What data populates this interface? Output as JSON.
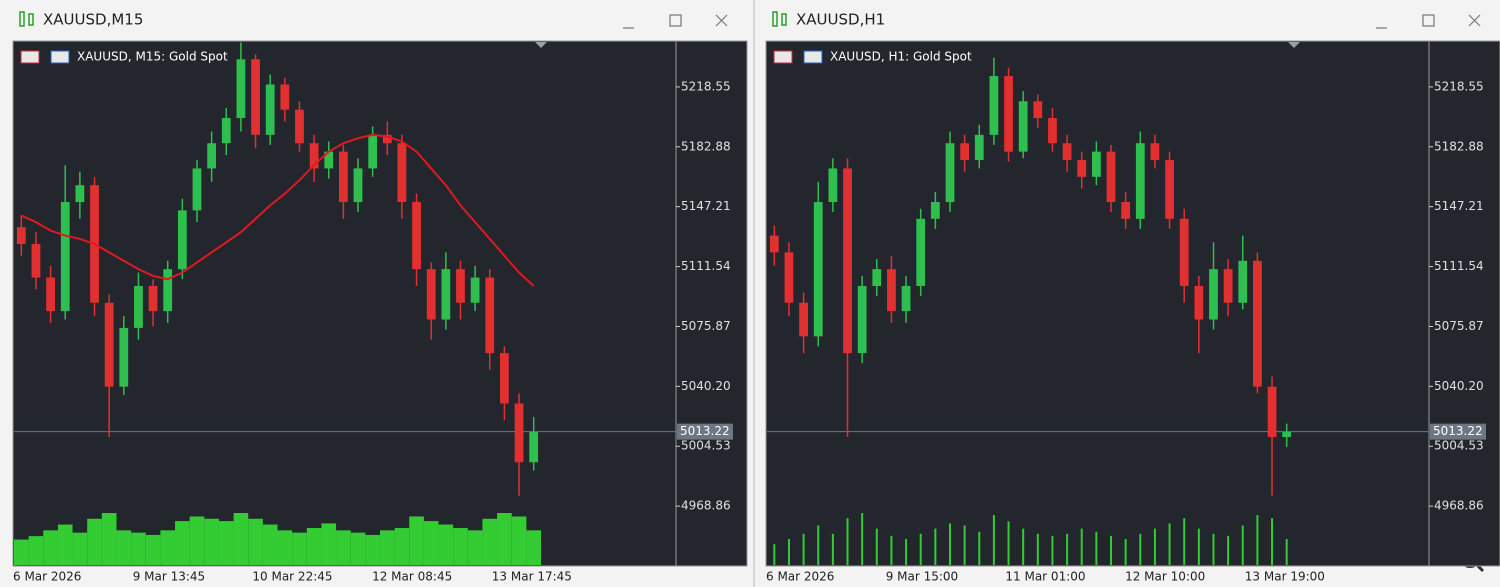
{
  "windows": [
    {
      "title": "XAUUSD,M15",
      "label": "XAUUSD, M15:  Gold Spot",
      "ylim": [
        4933.8,
        5245.3
      ],
      "yticks": [
        5218.55,
        5182.88,
        5147.21,
        5111.54,
        5075.87,
        {
          "value": 5040.2,
          "label": "5040.20"
        },
        5004.53,
        4968.86
      ],
      "current_price": 5013.22,
      "xlabels": [
        "6 Mar 2026",
        "9 Mar 13:45",
        "10 Mar 22:45",
        "12 Mar 08:45",
        "13 Mar 17:45"
      ],
      "candles": {
        "open": [
          5135,
          5125,
          5105,
          5085,
          5150,
          5160,
          5090,
          5040,
          5075,
          5100,
          5085,
          5110,
          5145,
          5170,
          5185,
          5200,
          5235,
          5190,
          5220,
          5205,
          5185,
          5170,
          5180,
          5150,
          5170,
          5190,
          5185,
          5150,
          5110,
          5080,
          5110,
          5090,
          5105,
          5060,
          5030,
          4995
        ],
        "high": [
          5142,
          5132,
          5112,
          5172,
          5168,
          5165,
          5095,
          5082,
          5108,
          5104,
          5115,
          5152,
          5175,
          5192,
          5206,
          5245,
          5238,
          5226,
          5224,
          5210,
          5190,
          5186,
          5184,
          5176,
          5195,
          5198,
          5190,
          5155,
          5114,
          5120,
          5115,
          5112,
          5110,
          5064,
          5036,
          5022
        ],
        "low": [
          5118,
          5098,
          5078,
          5080,
          5140,
          5082,
          5010,
          5035,
          5068,
          5076,
          5078,
          5104,
          5138,
          5162,
          5178,
          5192,
          5182,
          5184,
          5198,
          5180,
          5162,
          5164,
          5140,
          5144,
          5165,
          5178,
          5140,
          5100,
          5068,
          5074,
          5080,
          5085,
          5050,
          5020,
          4975,
          4990
        ],
        "close": [
          5125,
          5105,
          5085,
          5150,
          5160,
          5090,
          5040,
          5075,
          5100,
          5085,
          5110,
          5145,
          5170,
          5185,
          5200,
          5235,
          5190,
          5220,
          5205,
          5185,
          5170,
          5180,
          5150,
          5170,
          5190,
          5185,
          5150,
          5110,
          5080,
          5110,
          5090,
          5105,
          5060,
          5030,
          4995,
          5013
        ]
      },
      "ma": [
        5142,
        5138,
        5133,
        5130,
        5128,
        5125,
        5120,
        5115,
        5110,
        5106,
        5104,
        5108,
        5114,
        5120,
        5126,
        5132,
        5140,
        5148,
        5155,
        5163,
        5172,
        5180,
        5185,
        5188,
        5190,
        5189,
        5186,
        5180,
        5170,
        5160,
        5148,
        5138,
        5128,
        5118,
        5108,
        5100
      ],
      "ma_color": "#e0191f",
      "volume": [
        22,
        25,
        30,
        35,
        28,
        40,
        45,
        30,
        28,
        26,
        30,
        38,
        42,
        40,
        38,
        45,
        40,
        35,
        30,
        28,
        32,
        36,
        30,
        28,
        26,
        30,
        32,
        42,
        38,
        35,
        32,
        30,
        40,
        45,
        42,
        30
      ],
      "volume_style": "filled"
    },
    {
      "title": "XAUUSD,H1",
      "label": "XAUUSD, H1:  Gold Spot",
      "ylim": [
        4933.8,
        5245.3
      ],
      "yticks": [
        5218.55,
        5182.88,
        5147.21,
        5111.54,
        5075.87,
        {
          "value": 5040.2,
          "label": "5040.20"
        },
        5004.53,
        4968.86
      ],
      "current_price": 5013.22,
      "xlabels": [
        "6 Mar 2026",
        "9 Mar 15:00",
        "11 Mar 01:00",
        "12 Mar 10:00",
        "13 Mar 19:00"
      ],
      "candles": {
        "open": [
          5130,
          5120,
          5090,
          5070,
          5150,
          5170,
          5060,
          5100,
          5110,
          5085,
          5100,
          5140,
          5150,
          5185,
          5175,
          5190,
          5225,
          5180,
          5210,
          5200,
          5185,
          5175,
          5165,
          5180,
          5150,
          5140,
          5185,
          5175,
          5140,
          5100,
          5080,
          5110,
          5090,
          5115,
          5040,
          5010
        ],
        "high": [
          5136,
          5126,
          5096,
          5162,
          5176,
          5176,
          5106,
          5116,
          5118,
          5106,
          5146,
          5156,
          5192,
          5190,
          5196,
          5236,
          5230,
          5216,
          5214,
          5206,
          5190,
          5180,
          5186,
          5184,
          5156,
          5192,
          5190,
          5180,
          5146,
          5106,
          5126,
          5116,
          5130,
          5120,
          5046,
          5018
        ],
        "low": [
          5112,
          5082,
          5060,
          5064,
          5144,
          5010,
          5054,
          5094,
          5078,
          5078,
          5094,
          5134,
          5144,
          5168,
          5170,
          5184,
          5174,
          5176,
          5194,
          5180,
          5168,
          5158,
          5160,
          5144,
          5134,
          5134,
          5170,
          5134,
          5090,
          5060,
          5074,
          5082,
          5086,
          5036,
          4975,
          5004
        ],
        "close": [
          5120,
          5090,
          5070,
          5150,
          5170,
          5060,
          5100,
          5110,
          5085,
          5100,
          5140,
          5150,
          5185,
          5175,
          5190,
          5225,
          5180,
          5210,
          5200,
          5185,
          5175,
          5165,
          5180,
          5150,
          5140,
          5185,
          5175,
          5140,
          5100,
          5080,
          5110,
          5090,
          5115,
          5040,
          5010,
          5013
        ]
      },
      "volume": [
        20,
        25,
        30,
        38,
        30,
        45,
        50,
        35,
        28,
        25,
        30,
        35,
        40,
        38,
        32,
        48,
        42,
        35,
        30,
        28,
        30,
        35,
        32,
        28,
        25,
        30,
        35,
        40,
        45,
        35,
        30,
        28,
        38,
        48,
        45,
        25
      ],
      "volume_style": "lines"
    }
  ]
}
